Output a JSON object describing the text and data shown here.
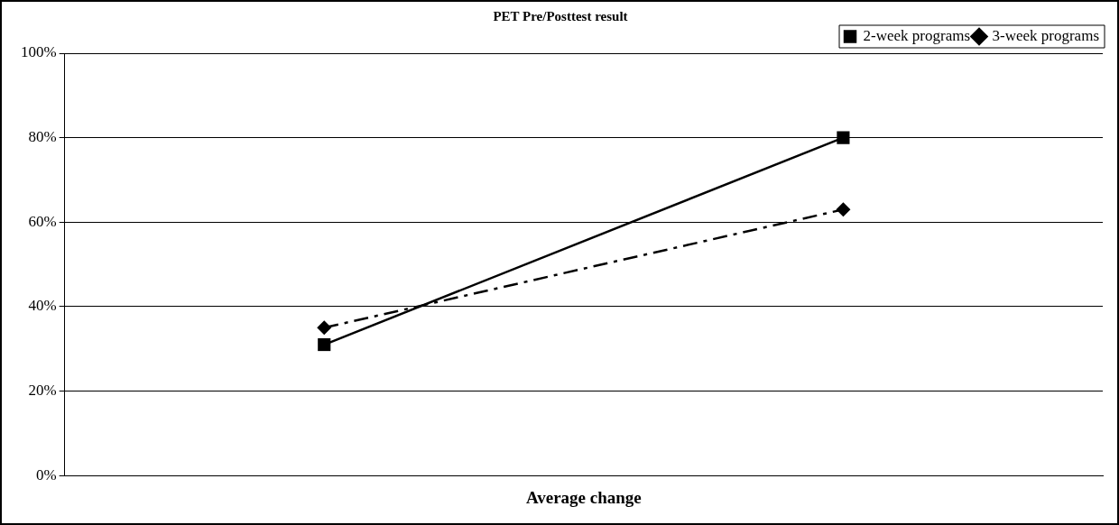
{
  "chart_data": {
    "type": "line",
    "title": "PET Pre/Posttest result",
    "xlabel": "Average change",
    "categories": [
      null,
      null
    ],
    "series": [
      {
        "name": "2-week programs",
        "color": "#000000",
        "values": [
          31,
          80
        ],
        "marker": "square",
        "line_style": "solid"
      },
      {
        "name": "3-week programs",
        "color": "#000000",
        "values": [
          35,
          63
        ],
        "marker": "diamond",
        "line_style": "dashdot"
      }
    ],
    "ylim": [
      0,
      100
    ],
    "yticks": [
      {
        "value": 0,
        "label": "0%"
      },
      {
        "value": 20,
        "label": "20%"
      },
      {
        "value": 40,
        "label": "40%"
      },
      {
        "value": 60,
        "label": "60%"
      },
      {
        "value": 80,
        "label": "80%"
      },
      {
        "value": 100,
        "label": "100%"
      }
    ],
    "grid": "y",
    "legend": "top right",
    "tick_labels": "y"
  }
}
